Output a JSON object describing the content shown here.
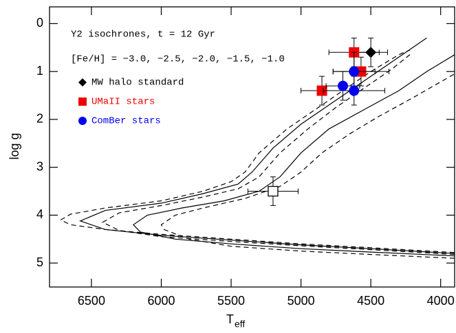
{
  "chart_data": {
    "type": "scatter",
    "xlim": [
      6800,
      3900
    ],
    "ylim": [
      -0.35,
      5.5
    ],
    "xticks": [
      6500,
      6000,
      5500,
      5000,
      4500,
      4000
    ],
    "yticks": [
      0,
      1,
      2,
      3,
      4,
      5
    ],
    "xlabel": {
      "text": "T",
      "subscript": "eff"
    },
    "ylabel": "log g",
    "annotations": [
      "Y2 isochrones, t = 12 Gyr",
      "[Fe/H] = −3.0, −2.5, −2.0, −1.5, −1.0"
    ],
    "legend": "upper left",
    "isochrones": [
      {
        "style": "dashed",
        "x": [
          3900,
          4500,
          5000,
          5500,
          6000,
          6400,
          6650,
          6720,
          6650,
          6400,
          6000,
          5700,
          5500,
          5400,
          5300,
          5100,
          4900,
          4700,
          4500,
          4300,
          4220
        ],
        "y": [
          4.78,
          4.68,
          4.6,
          4.5,
          4.4,
          4.3,
          4.2,
          4.1,
          3.98,
          3.85,
          3.7,
          3.5,
          3.3,
          3.1,
          2.7,
          2.2,
          1.8,
          1.4,
          1.0,
          0.65,
          0.55
        ]
      },
      {
        "style": "solid",
        "x": [
          3900,
          4500,
          5000,
          5500,
          6000,
          6400,
          6580,
          6400,
          6000,
          5700,
          5450,
          5350,
          5200,
          5000,
          4800,
          4600,
          4400,
          4200,
          4100
        ],
        "y": [
          4.8,
          4.7,
          4.62,
          4.52,
          4.42,
          4.3,
          4.12,
          3.9,
          3.75,
          3.55,
          3.35,
          3.1,
          2.6,
          2.1,
          1.7,
          1.3,
          0.9,
          0.5,
          0.3
        ]
      },
      {
        "style": "dashed",
        "x": [
          3900,
          4500,
          5000,
          5500,
          6000,
          6300,
          6420,
          6300,
          6000,
          5700,
          5450,
          5300,
          5150,
          4950,
          4750,
          4550,
          4350,
          4200
        ],
        "y": [
          4.82,
          4.72,
          4.64,
          4.55,
          4.45,
          4.32,
          4.15,
          3.95,
          3.8,
          3.62,
          3.45,
          3.2,
          2.7,
          2.2,
          1.75,
          1.35,
          0.95,
          0.6
        ]
      },
      {
        "style": "solid",
        "x": [
          3900,
          4500,
          5000,
          5500,
          5900,
          6150,
          6200,
          6100,
          5850,
          5550,
          5300,
          5150,
          5000,
          4800,
          4550,
          4300,
          4100,
          3900
        ],
        "y": [
          4.85,
          4.77,
          4.7,
          4.6,
          4.5,
          4.35,
          4.2,
          4.0,
          3.85,
          3.7,
          3.5,
          3.2,
          2.7,
          2.2,
          1.8,
          1.4,
          1.0,
          0.65
        ]
      },
      {
        "style": "dashed",
        "x": [
          3900,
          4500,
          5000,
          5500,
          5800,
          5980,
          6000,
          5900,
          5700,
          5400,
          5150,
          5000,
          4850,
          4650,
          4450,
          4200,
          3900
        ],
        "y": [
          4.9,
          4.82,
          4.75,
          4.65,
          4.5,
          4.3,
          4.2,
          4.0,
          3.85,
          3.65,
          3.4,
          3.1,
          2.7,
          2.3,
          1.95,
          1.55,
          1.05
        ]
      }
    ],
    "series": [
      {
        "name": "MW halo standard",
        "color": "#000000",
        "marker": "diamond",
        "x": [
          4500
        ],
        "y": [
          0.6
        ],
        "xerr": [
          120
        ],
        "yerr": [
          0.3
        ]
      },
      {
        "name": "UMaII stars",
        "color": "#ee0000",
        "marker": "square",
        "x": [
          4620,
          4570,
          4850
        ],
        "y": [
          0.6,
          1.0,
          1.4
        ],
        "xerr": [
          180,
          200,
          150
        ],
        "yerr": [
          0.3,
          0.3,
          0.3
        ]
      },
      {
        "name": "ComBer stars",
        "color": "#0000ee",
        "marker": "circle",
        "x": [
          4620,
          4700,
          4620
        ],
        "y": [
          1.0,
          1.3,
          1.4
        ],
        "xerr": [
          150,
          120,
          220
        ],
        "yerr": [
          0.4,
          0.3,
          0.3
        ]
      },
      {
        "color": "#000000",
        "marker": "open-square",
        "x": [
          5200
        ],
        "y": [
          3.5
        ],
        "xerr": [
          180
        ],
        "yerr": [
          0.3
        ]
      }
    ]
  }
}
